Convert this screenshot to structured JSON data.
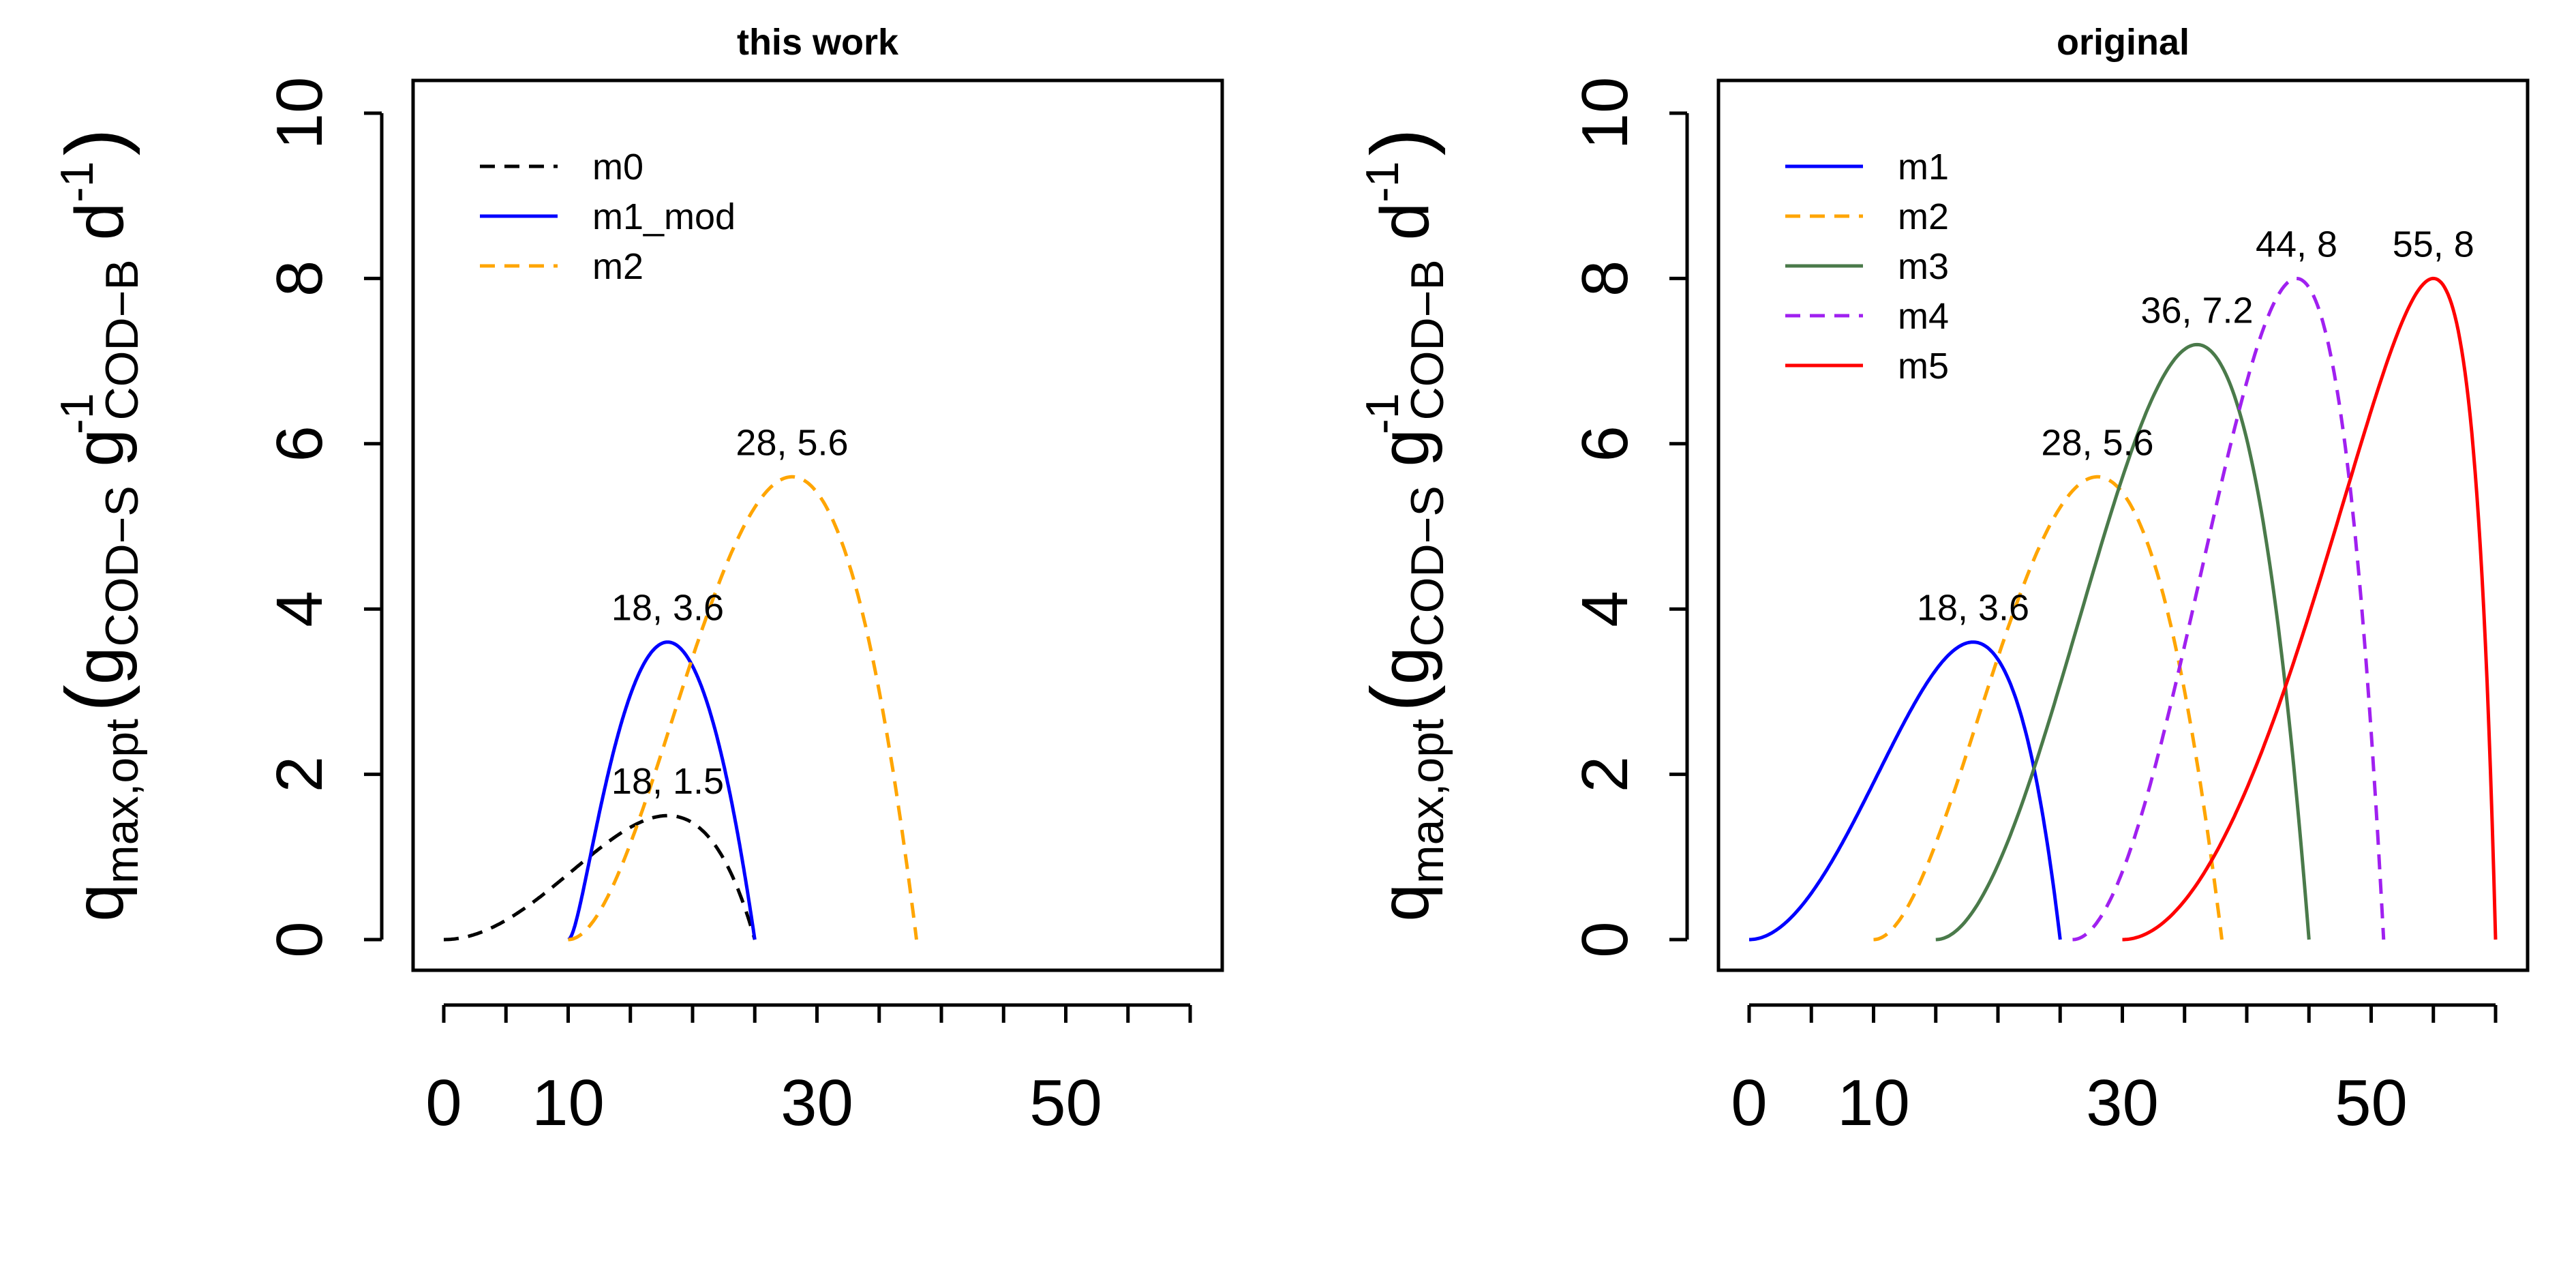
{
  "chart_data": [
    {
      "type": "line",
      "title": "this work",
      "ylabel": {
        "q": "q",
        "q_sub": "max,opt",
        "g1": "g",
        "g1_sub": "COD−S",
        "g2": "g",
        "g2_sup": "-1",
        "g2_sub": "COD−B",
        "d": "d",
        "d_sup": "-1"
      },
      "xticks": [
        0,
        10,
        30,
        50
      ],
      "xtick_positions": [
        0,
        5,
        10,
        15,
        20,
        25,
        30,
        35,
        40,
        45,
        50,
        55,
        60
      ],
      "yticks": [
        0,
        2,
        4,
        6,
        8,
        10
      ],
      "xlim": [
        0,
        60
      ],
      "ylim": [
        0,
        10
      ],
      "legend_position": "top-left",
      "series": [
        {
          "name": "m0",
          "color": "#000000",
          "dash": "dashed",
          "tmin": 0,
          "topt": 18,
          "tmax": 25,
          "qmax": 1.5
        },
        {
          "name": "m1_mod",
          "color": "#0000ff",
          "dash": "solid",
          "tmin": 10,
          "topt": 18,
          "tmax": 25,
          "qmax": 3.6
        },
        {
          "name": "m2",
          "color": "#ffa500",
          "dash": "dashed",
          "tmin": 10,
          "topt": 28,
          "tmax": 38,
          "qmax": 5.6
        }
      ],
      "annotations": [
        {
          "text": "18, 3.6",
          "x": 18,
          "y": 3.6
        },
        {
          "text": "18, 1.5",
          "x": 18,
          "y": 1.5
        },
        {
          "text": "28, 5.6",
          "x": 28,
          "y": 5.6
        }
      ]
    },
    {
      "type": "line",
      "title": "original",
      "ylabel": {
        "q": "q",
        "q_sub": "max,opt",
        "g1": "g",
        "g1_sub": "COD−S",
        "g2": "g",
        "g2_sup": "-1",
        "g2_sub": "COD−B",
        "d": "d",
        "d_sup": "-1"
      },
      "xticks": [
        0,
        10,
        30,
        50
      ],
      "xtick_positions": [
        0,
        5,
        10,
        15,
        20,
        25,
        30,
        35,
        40,
        45,
        50,
        55,
        60
      ],
      "yticks": [
        0,
        2,
        4,
        6,
        8,
        10
      ],
      "xlim": [
        0,
        60
      ],
      "ylim": [
        0,
        10
      ],
      "legend_position": "top-left",
      "series": [
        {
          "name": "m1",
          "color": "#0000ff",
          "dash": "solid",
          "tmin": 0,
          "topt": 18,
          "tmax": 25,
          "qmax": 3.6
        },
        {
          "name": "m2",
          "color": "#ffa500",
          "dash": "dashed",
          "tmin": 10,
          "topt": 28,
          "tmax": 38,
          "qmax": 5.6
        },
        {
          "name": "m3",
          "color": "#4a7a4a",
          "dash": "solid",
          "tmin": 15,
          "topt": 36,
          "tmax": 45,
          "qmax": 7.2
        },
        {
          "name": "m4",
          "color": "#a020f0",
          "dash": "dashed",
          "tmin": 26,
          "topt": 44,
          "tmax": 51,
          "qmax": 8
        },
        {
          "name": "m5",
          "color": "#ff0000",
          "dash": "solid",
          "tmin": 30,
          "topt": 55,
          "tmax": 60,
          "qmax": 8
        }
      ],
      "annotations": [
        {
          "text": "18, 3.6",
          "x": 18,
          "y": 3.6
        },
        {
          "text": "28, 5.6",
          "x": 28,
          "y": 5.6
        },
        {
          "text": "36, 7.2",
          "x": 36,
          "y": 7.2
        },
        {
          "text": "44, 8",
          "x": 44,
          "y": 8
        },
        {
          "text": "55, 8",
          "x": 55,
          "y": 8
        }
      ]
    }
  ]
}
